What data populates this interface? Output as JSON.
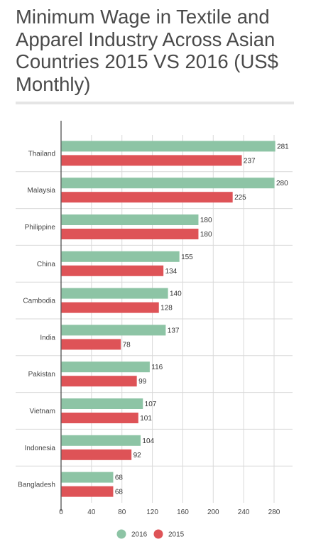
{
  "title": "Minimum Wage in Textile and Apparel Industry Across Asian Countries 2015 VS 2016 (US$ Monthly)",
  "chart_data": {
    "type": "bar",
    "orientation": "horizontal",
    "title": "Minimum Wage in Textile and Apparel Industry Across Asian Countries 2015 VS 2016 (US$ Monthly)",
    "categories": [
      "Thailand",
      "Malaysia",
      "Philippine",
      "China",
      "Cambodia",
      "India",
      "Pakistan",
      "Vietnam",
      "Indonesia",
      "Bangladesh"
    ],
    "series": [
      {
        "name": "2016",
        "color": "#8dc4a5",
        "values": [
          281,
          280,
          180,
          155,
          140,
          137,
          116,
          107,
          104,
          68
        ]
      },
      {
        "name": "2015",
        "color": "#de5357",
        "values": [
          237,
          225,
          180,
          134,
          128,
          78,
          99,
          101,
          92,
          68
        ]
      }
    ],
    "xlim": [
      0,
      280
    ],
    "xticks": [
      0,
      40,
      80,
      120,
      160,
      200,
      240,
      280
    ],
    "grid": true,
    "data_labels": true,
    "legend_position": "bottom"
  }
}
